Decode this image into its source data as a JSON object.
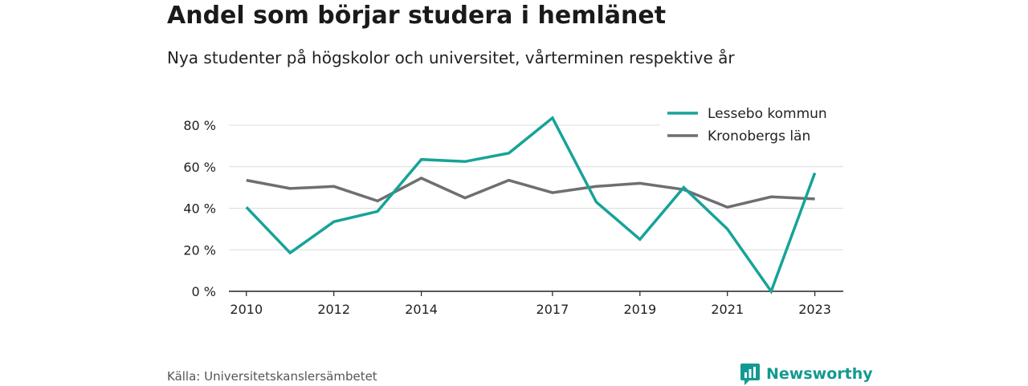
{
  "header": {
    "title": "Andel som börjar studera i hemlänet",
    "subtitle": "Nya studenter på högskolor och universitet, vårterminen respektive år"
  },
  "footer": {
    "source": "Källa: Universitetskanslersämbetet",
    "brand": "Newsworthy",
    "brand_icon": "bar-chart-logo-icon",
    "brand_color": "#129a90"
  },
  "chart_data": {
    "type": "line",
    "title": "",
    "xlabel": "",
    "ylabel": "",
    "x": [
      2010,
      2011,
      2012,
      2013,
      2014,
      2015,
      2016,
      2017,
      2018,
      2019,
      2020,
      2021,
      2022,
      2023
    ],
    "xlim": [
      2009.6,
      2023.65
    ],
    "ylim": [
      0,
      80
    ],
    "y_ticks": [
      0,
      20,
      40,
      60,
      80
    ],
    "y_tick_labels": [
      "0 %",
      "20 %",
      "40 %",
      "60 %",
      "80 %"
    ],
    "x_ticks": [
      2010,
      2012,
      2014,
      2017,
      2019,
      2021,
      2023
    ],
    "x_tick_labels": [
      "2010",
      "2012",
      "2014",
      "2017",
      "2019",
      "2021",
      "2023"
    ],
    "grid": true,
    "legend_position": "top-right",
    "series": [
      {
        "name": "Lessebo kommun",
        "color": "#17a398",
        "values": [
          40.5,
          18.5,
          33.5,
          38.5,
          63.5,
          62.5,
          66.5,
          83.5,
          43,
          25,
          50,
          30,
          0,
          57
        ]
      },
      {
        "name": "Kronobergs län",
        "color": "#6f6e73",
        "values": [
          53.5,
          49.5,
          50.5,
          43.5,
          54.5,
          45,
          53.5,
          47.5,
          50.5,
          52,
          49,
          40.5,
          45.5,
          44.5
        ]
      }
    ]
  }
}
